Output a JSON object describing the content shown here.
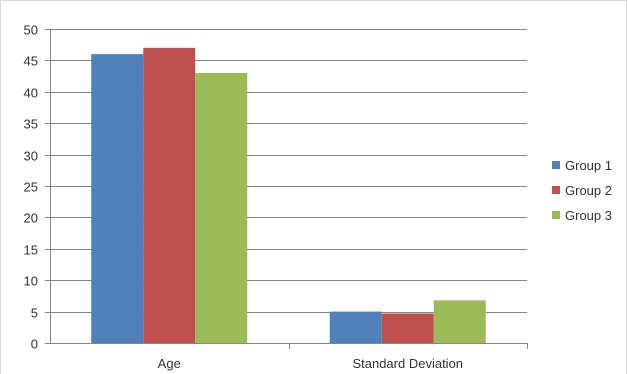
{
  "chart_data": {
    "type": "bar",
    "title": "",
    "xlabel": "",
    "ylabel": "",
    "categories": [
      "Age",
      "Standard Deviation"
    ],
    "series": [
      {
        "name": "Group 1",
        "values": [
          46,
          5
        ],
        "color": "#4f81bd"
      },
      {
        "name": "Group 2",
        "values": [
          47,
          4.7
        ],
        "color": "#c0504d"
      },
      {
        "name": "Group 3",
        "values": [
          43,
          6.8
        ],
        "color": "#9bbb59"
      }
    ],
    "ylim": [
      0,
      50
    ],
    "yticks": [
      0,
      5,
      10,
      15,
      20,
      25,
      30,
      35,
      40,
      45,
      50
    ],
    "grid": true,
    "legend_position": "right"
  }
}
